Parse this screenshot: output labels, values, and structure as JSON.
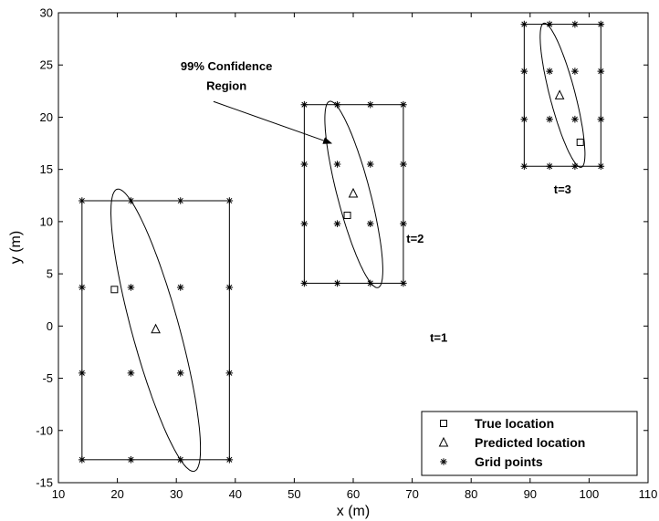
{
  "chart_data": {
    "type": "scatter",
    "xlabel": "x (m)",
    "ylabel": "y (m)",
    "xlim": [
      10,
      110
    ],
    "ylim": [
      -15,
      30
    ],
    "xticks": [
      10,
      20,
      30,
      40,
      50,
      60,
      70,
      80,
      90,
      100,
      110
    ],
    "yticks": [
      -15,
      -10,
      -5,
      0,
      5,
      10,
      15,
      20,
      25,
      30
    ],
    "grid": false,
    "legend_position": "bottom-right",
    "series": [
      {
        "name": "True location",
        "marker": "square",
        "points": [
          [
            19.5,
            3.5
          ],
          [
            59,
            10.6
          ],
          [
            98.5,
            17.6
          ]
        ]
      },
      {
        "name": "Predicted location",
        "marker": "triangle",
        "points": [
          [
            26.5,
            -0.3
          ],
          [
            60,
            12.7
          ],
          [
            95,
            22.1
          ]
        ]
      },
      {
        "name": "Grid points",
        "marker": "asterisk",
        "grids": [
          {
            "x": [
              14,
              22.3,
              30.7,
              39
            ],
            "y": [
              -12.8,
              -4.5,
              3.7,
              12
            ]
          },
          {
            "x": [
              51.7,
              57.3,
              62.9,
              68.5
            ],
            "y": [
              4.1,
              9.8,
              15.5,
              21.2
            ]
          },
          {
            "x": [
              89,
              93.3,
              97.6,
              102
            ],
            "y": [
              15.3,
              19.8,
              24.4,
              28.9
            ]
          }
        ]
      }
    ],
    "rectangles": [
      {
        "x": [
          14,
          39
        ],
        "y": [
          -12.8,
          12
        ]
      },
      {
        "x": [
          51.7,
          68.5
        ],
        "y": [
          4.1,
          21.2
        ]
      },
      {
        "x": [
          89,
          102
        ],
        "y": [
          15.3,
          28.9
        ]
      }
    ],
    "ellipses": [
      {
        "center": [
          26.5,
          -0.4
        ],
        "a": 15.05,
        "b": 3.72,
        "angle_deg": -63
      },
      {
        "center": [
          60.1,
          12.6
        ],
        "a": 9.85,
        "b": 2.61,
        "angle_deg": -64
      },
      {
        "center": [
          95.5,
          22.1
        ],
        "a": 7.62,
        "b": 2.01,
        "angle_deg": -64
      }
    ],
    "annotations": [
      {
        "text": "t=1",
        "x": 74.5,
        "y": -1.5
      },
      {
        "text": "t=2",
        "x": 70.5,
        "y": 8
      },
      {
        "text": "t=3",
        "x": 95.5,
        "y": 12.7
      },
      {
        "text": "99% Confidence",
        "x": 38.5,
        "y": 24.5
      },
      {
        "text": "Region",
        "x": 38.5,
        "y": 22.6
      }
    ],
    "arrow": {
      "from": [
        36.3,
        21.5
      ],
      "to": [
        56.3,
        17.5
      ]
    }
  }
}
